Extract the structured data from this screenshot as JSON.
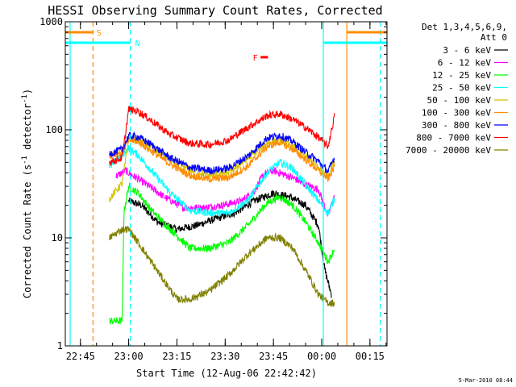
{
  "chart_data": {
    "type": "line",
    "title": "HESSI Observing Summary Count Rates, Corrected",
    "xlabel": "Start Time (12-Aug-06 22:42:42)",
    "ylabel": "Corrected Count Rate (s⁻¹ detector⁻¹)",
    "ylabel_main": "Corrected Count Rate (s",
    "ylabel_sup1": "-1",
    "ylabel_mid": " detector",
    "ylabel_sup2": "-1",
    "ylabel_end": ")",
    "yscale": "log",
    "ylim": [
      1,
      1000
    ],
    "xlim_minutes": [
      -4.7,
      95.3
    ],
    "x_ticks": [
      {
        "minute": 0,
        "label": "22:45"
      },
      {
        "minute": 15,
        "label": "23:00"
      },
      {
        "minute": 30,
        "label": "23:15"
      },
      {
        "minute": 45,
        "label": "23:30"
      },
      {
        "minute": 60,
        "label": "23:45"
      },
      {
        "minute": 75,
        "label": "00:00"
      },
      {
        "minute": 90,
        "label": "00:15"
      }
    ],
    "y_ticks": [
      {
        "value": 1,
        "label": "1"
      },
      {
        "value": 10,
        "label": "10"
      },
      {
        "value": 100,
        "label": "100"
      },
      {
        "value": 1000,
        "label": "1000"
      }
    ],
    "legend_title": [
      "Det 1,3,4,5,6,9,",
      "Att 0"
    ],
    "legend_placement": "right",
    "series": [
      {
        "name": "3 - 6 keV",
        "color": "#000000",
        "points": [
          [
            15,
            22
          ],
          [
            19,
            20
          ],
          [
            24,
            14
          ],
          [
            30,
            12
          ],
          [
            36,
            13
          ],
          [
            42,
            15
          ],
          [
            48,
            17
          ],
          [
            54,
            22
          ],
          [
            60,
            26
          ],
          [
            65,
            24
          ],
          [
            70,
            20
          ],
          [
            74,
            13
          ],
          [
            76,
            5
          ],
          [
            78,
            3
          ]
        ]
      },
      {
        "name": "6 - 12 keV",
        "color": "#ff00ff",
        "points": [
          [
            11,
            37
          ],
          [
            14,
            42
          ],
          [
            16,
            38
          ],
          [
            20,
            32
          ],
          [
            26,
            24
          ],
          [
            32,
            19
          ],
          [
            38,
            19
          ],
          [
            44,
            20
          ],
          [
            50,
            22
          ],
          [
            54,
            27
          ],
          [
            57,
            39
          ],
          [
            60,
            42
          ],
          [
            66,
            36
          ],
          [
            70,
            31
          ],
          [
            74,
            28
          ],
          [
            77,
            16
          ],
          [
            79,
            25
          ]
        ]
      },
      {
        "name": "12 - 25 keV",
        "color": "#00ff00",
        "points": [
          [
            9,
            1.7
          ],
          [
            13,
            1.7
          ],
          [
            13.5,
            17
          ],
          [
            15,
            30
          ],
          [
            18,
            26
          ],
          [
            22,
            18
          ],
          [
            28,
            12
          ],
          [
            34,
            8
          ],
          [
            40,
            8
          ],
          [
            46,
            9
          ],
          [
            52,
            13
          ],
          [
            58,
            21
          ],
          [
            62,
            24
          ],
          [
            66,
            20
          ],
          [
            70,
            14
          ],
          [
            74,
            9
          ],
          [
            77,
            6
          ],
          [
            79,
            8
          ]
        ]
      },
      {
        "name": "25 - 50 keV",
        "color": "#00ffff",
        "points": [
          [
            9,
            45
          ],
          [
            13,
            58
          ],
          [
            15,
            68
          ],
          [
            18,
            58
          ],
          [
            22,
            42
          ],
          [
            28,
            26
          ],
          [
            34,
            18
          ],
          [
            40,
            17
          ],
          [
            46,
            17
          ],
          [
            52,
            22
          ],
          [
            58,
            40
          ],
          [
            62,
            50
          ],
          [
            66,
            44
          ],
          [
            70,
            31
          ],
          [
            74,
            22
          ],
          [
            77,
            17
          ],
          [
            79,
            23
          ]
        ]
      },
      {
        "name": "50 - 100 keV",
        "color": "#d4c400",
        "points": [
          [
            9,
            23
          ],
          [
            13,
            32
          ],
          [
            15,
            83
          ],
          [
            18,
            80
          ],
          [
            22,
            70
          ],
          [
            28,
            52
          ],
          [
            34,
            43
          ],
          [
            40,
            38
          ],
          [
            46,
            40
          ],
          [
            52,
            54
          ],
          [
            58,
            76
          ],
          [
            62,
            80
          ],
          [
            66,
            70
          ],
          [
            70,
            58
          ],
          [
            74,
            44
          ],
          [
            77,
            38
          ],
          [
            79,
            52
          ]
        ]
      },
      {
        "name": "100 - 300 keV",
        "color": "#ff8c00",
        "points": [
          [
            9,
            58
          ],
          [
            13,
            62
          ],
          [
            15,
            80
          ],
          [
            18,
            78
          ],
          [
            22,
            64
          ],
          [
            28,
            48
          ],
          [
            34,
            38
          ],
          [
            40,
            35
          ],
          [
            46,
            36
          ],
          [
            52,
            46
          ],
          [
            58,
            70
          ],
          [
            62,
            77
          ],
          [
            66,
            66
          ],
          [
            70,
            53
          ],
          [
            74,
            42
          ],
          [
            77,
            35
          ],
          [
            79,
            46
          ]
        ]
      },
      {
        "name": "300 - 800 keV",
        "color": "#0000ff",
        "points": [
          [
            9,
            60
          ],
          [
            13,
            66
          ],
          [
            15,
            88
          ],
          [
            18,
            86
          ],
          [
            22,
            73
          ],
          [
            28,
            55
          ],
          [
            34,
            45
          ],
          [
            40,
            42
          ],
          [
            46,
            44
          ],
          [
            52,
            57
          ],
          [
            58,
            84
          ],
          [
            62,
            89
          ],
          [
            66,
            78
          ],
          [
            70,
            62
          ],
          [
            74,
            51
          ],
          [
            77,
            41
          ],
          [
            79,
            56
          ]
        ]
      },
      {
        "name": "800 - 7000 keV",
        "color": "#ff0000",
        "points": [
          [
            9,
            50
          ],
          [
            13,
            55
          ],
          [
            15,
            155
          ],
          [
            18,
            148
          ],
          [
            22,
            122
          ],
          [
            28,
            90
          ],
          [
            34,
            75
          ],
          [
            40,
            73
          ],
          [
            46,
            80
          ],
          [
            52,
            105
          ],
          [
            58,
            135
          ],
          [
            62,
            140
          ],
          [
            66,
            125
          ],
          [
            70,
            105
          ],
          [
            74,
            85
          ],
          [
            77,
            70
          ],
          [
            79,
            135
          ]
        ]
      },
      {
        "name": "7000 - 20000 keV",
        "color": "#808000",
        "points": [
          [
            9,
            10
          ],
          [
            13,
            12
          ],
          [
            15,
            12
          ],
          [
            18,
            9
          ],
          [
            22,
            6
          ],
          [
            26,
            4
          ],
          [
            30,
            2.7
          ],
          [
            34,
            2.7
          ],
          [
            40,
            3.2
          ],
          [
            46,
            4.5
          ],
          [
            52,
            7
          ],
          [
            58,
            10
          ],
          [
            62,
            10
          ],
          [
            66,
            8
          ],
          [
            70,
            5
          ],
          [
            74,
            3
          ],
          [
            77,
            2.5
          ],
          [
            79,
            2.5
          ]
        ]
      }
    ],
    "vertical_lines": [
      {
        "minute": -3.2,
        "color": "#00ffff",
        "style": "solid"
      },
      {
        "minute": 3.9,
        "color": "#ff8c00",
        "style": "dashed"
      },
      {
        "minute": 15.5,
        "color": "#00ffff",
        "style": "dashed"
      },
      {
        "minute": 75.5,
        "color": "#00ffff",
        "style": "solid"
      },
      {
        "minute": 82.8,
        "color": "#ff8c00",
        "style": "solid"
      },
      {
        "minute": 93.2,
        "color": "#00ffff",
        "style": "dashed"
      }
    ],
    "annotations": [
      {
        "label": "S",
        "color": "#ff8c00",
        "bar_value": 800
      },
      {
        "label": "N",
        "color": "#00ffff",
        "bar_value": 640
      },
      {
        "label": "F",
        "color": "#ff0000",
        "bar_value": 470
      }
    ],
    "grid": false
  },
  "timestamp": "5-Mar-2010 08:44"
}
